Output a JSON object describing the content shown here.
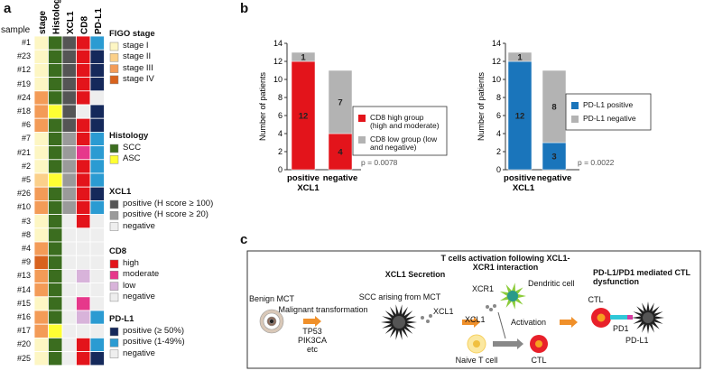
{
  "panel_labels": [
    "a",
    "b",
    "c"
  ],
  "heatmap": {
    "sample_label": "sample",
    "columns": [
      "stage",
      "Histology",
      "XCL1",
      "CD8",
      "PD-L1"
    ],
    "legend": [
      {
        "title": "FIGO stage",
        "items": [
          {
            "label": "stage I",
            "color": "#fdf6c3"
          },
          {
            "label": "stage II",
            "color": "#fbd08a"
          },
          {
            "label": "stage III",
            "color": "#f39b57"
          },
          {
            "label": "stage IV",
            "color": "#d8621d"
          }
        ]
      },
      {
        "title": "Histology",
        "items": [
          {
            "label": "SCC",
            "color": "#3b6d1f"
          },
          {
            "label": "ASC",
            "color": "#ffff33"
          }
        ]
      },
      {
        "title": "XCL1",
        "items": [
          {
            "label": "positive (H score ≥ 100)",
            "color": "#555555"
          },
          {
            "label": "positive (H score ≥ 20)",
            "color": "#9a9a9a"
          },
          {
            "label": "negative",
            "color": "#eeeeee"
          }
        ]
      },
      {
        "title": "CD8",
        "items": [
          {
            "label": "high",
            "color": "#e3141b"
          },
          {
            "label": "moderate",
            "color": "#e6388b"
          },
          {
            "label": "low",
            "color": "#d8b3da"
          },
          {
            "label": "negative",
            "color": "#eeeeee"
          }
        ]
      },
      {
        "title": "PD-L1",
        "items": [
          {
            "label": "positive (≥ 50%)",
            "color": "#15295b"
          },
          {
            "label": "positive (1-49%)",
            "color": "#2b9bd2"
          },
          {
            "label": "negative",
            "color": "#eeeeee"
          }
        ]
      }
    ],
    "rows": [
      {
        "sample": "#1",
        "cells": [
          "stage I",
          "SCC",
          "positive (H score ≥ 100)",
          "high",
          "positive (1-49%)"
        ]
      },
      {
        "sample": "#23",
        "cells": [
          "stage I",
          "SCC",
          "positive (H score ≥ 100)",
          "high",
          "positive (≥ 50%)"
        ]
      },
      {
        "sample": "#12",
        "cells": [
          "stage I",
          "SCC",
          "positive (H score ≥ 100)",
          "high",
          "positive (≥ 50%)"
        ]
      },
      {
        "sample": "#19",
        "cells": [
          "stage I",
          "SCC",
          "positive (H score ≥ 100)",
          "high",
          "positive (≥ 50%)"
        ]
      },
      {
        "sample": "#24",
        "cells": [
          "stage III",
          "SCC",
          "positive (H score ≥ 100)",
          "high",
          "negative"
        ]
      },
      {
        "sample": "#18",
        "cells": [
          "stage III",
          "ASC",
          "positive (H score ≥ 100)",
          "negative",
          "positive (≥ 50%)"
        ]
      },
      {
        "sample": "#6",
        "cells": [
          "stage III",
          "SCC",
          "positive (H score ≥ 100)",
          "high",
          "positive (≥ 50%)"
        ]
      },
      {
        "sample": "#7",
        "cells": [
          "stage I",
          "SCC",
          "positive (H score ≥ 20)",
          "high",
          "positive (1-49%)"
        ]
      },
      {
        "sample": "#21",
        "cells": [
          "stage I",
          "SCC",
          "positive (H score ≥ 20)",
          "moderate",
          "positive (1-49%)"
        ]
      },
      {
        "sample": "#2",
        "cells": [
          "stage I",
          "SCC",
          "positive (H score ≥ 20)",
          "high",
          "positive (1-49%)"
        ]
      },
      {
        "sample": "#5",
        "cells": [
          "stage II",
          "ASC",
          "positive (H score ≥ 20)",
          "high",
          "positive (1-49%)"
        ]
      },
      {
        "sample": "#26",
        "cells": [
          "stage III",
          "SCC",
          "positive (H score ≥ 20)",
          "high",
          "positive (≥ 50%)"
        ]
      },
      {
        "sample": "#10",
        "cells": [
          "stage III",
          "SCC",
          "positive (H score ≥ 20)",
          "high",
          "positive (1-49%)"
        ]
      },
      {
        "sample": "#3",
        "cells": [
          "stage I",
          "SCC",
          "negative",
          "high",
          "negative"
        ]
      },
      {
        "sample": "#8",
        "cells": [
          "stage I",
          "SCC",
          "negative",
          "negative",
          "negative"
        ]
      },
      {
        "sample": "#4",
        "cells": [
          "stage III",
          "SCC",
          "negative",
          "negative",
          "negative"
        ]
      },
      {
        "sample": "#9",
        "cells": [
          "stage IV",
          "SCC",
          "negative",
          "negative",
          "negative"
        ]
      },
      {
        "sample": "#13",
        "cells": [
          "stage III",
          "SCC",
          "negative",
          "low",
          "negative"
        ]
      },
      {
        "sample": "#14",
        "cells": [
          "stage III",
          "SCC",
          "negative",
          "negative",
          "negative"
        ]
      },
      {
        "sample": "#15",
        "cells": [
          "stage I",
          "SCC",
          "negative",
          "moderate",
          "negative"
        ]
      },
      {
        "sample": "#16",
        "cells": [
          "stage III",
          "SCC",
          "negative",
          "low",
          "positive (1-49%)"
        ]
      },
      {
        "sample": "#17",
        "cells": [
          "stage III",
          "ASC",
          "negative",
          "negative",
          "negative"
        ]
      },
      {
        "sample": "#20",
        "cells": [
          "stage I",
          "SCC",
          "negative",
          "high",
          "positive (1-49%)"
        ]
      },
      {
        "sample": "#25",
        "cells": [
          "stage I",
          "SCC",
          "negative",
          "high",
          "positive (≥ 50%)"
        ]
      }
    ]
  },
  "chart_data": [
    {
      "type": "bar",
      "stacked": true,
      "ylabel": "Number of patients",
      "xlabel": "XCL1",
      "categories": [
        "positive",
        "negative"
      ],
      "series": [
        {
          "name": "CD8 high group (high and moderate)",
          "color": "#e3141b",
          "values": [
            12,
            4
          ]
        },
        {
          "name": "CD8 low group (low and negative)",
          "color": "#b3b3b3",
          "values": [
            1,
            7
          ]
        }
      ],
      "ylim": [
        0,
        14
      ],
      "yticks": [
        0,
        2,
        4,
        6,
        8,
        10,
        12,
        14
      ],
      "annotation": "p = 0.0078"
    },
    {
      "type": "bar",
      "stacked": true,
      "ylabel": "Number of patients",
      "xlabel": "XCL1",
      "categories": [
        "positive",
        "negative"
      ],
      "series": [
        {
          "name": "PD-L1 positive",
          "color": "#1a75bb",
          "values": [
            12,
            3
          ]
        },
        {
          "name": "PD-L1 negative",
          "color": "#b3b3b3",
          "values": [
            1,
            8
          ]
        }
      ],
      "ylim": [
        0,
        14
      ],
      "yticks": [
        0,
        2,
        4,
        6,
        8,
        10,
        12,
        14
      ],
      "annotation": "p = 0.0022"
    }
  ],
  "diagram": {
    "titles": [
      "XCL1 Secretion",
      "T cells activation following XCL1-XCR1 interaction",
      "PD-L1/PD1 mediated CTL dysfunction"
    ],
    "labels": {
      "benign": "Benign MCT",
      "transformation": "Malignant transformation",
      "genes": [
        "TP53",
        "PIK3CA",
        "etc"
      ],
      "scc": "SCC arising from MCT",
      "xcl1_a": "XCL1",
      "dc": "Dendritic cell",
      "xcr1": "XCR1",
      "xcl1_b": "XCL1",
      "activation": "Activation",
      "naive": "Naive T cell",
      "ctl_a": "CTL",
      "ctl_b": "CTL",
      "pd1": "PD1",
      "pdl1": "PD-L1"
    }
  }
}
